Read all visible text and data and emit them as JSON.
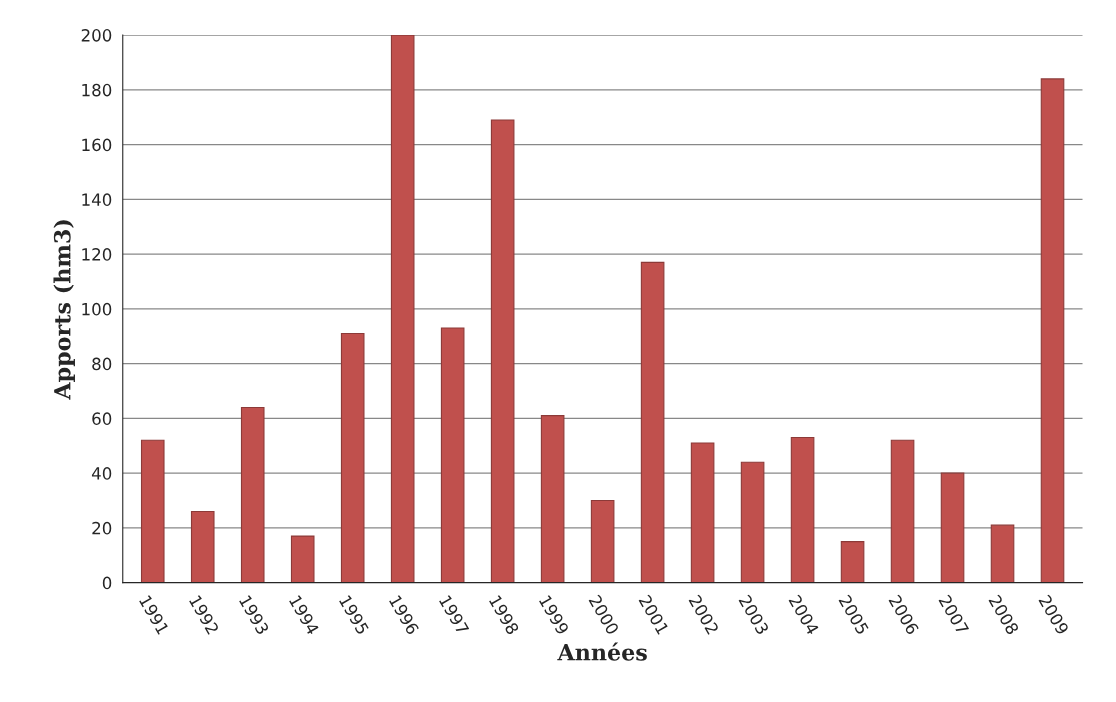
{
  "chart_data": {
    "type": "bar",
    "xlabel": "Années",
    "ylabel": "Apports (hm3)",
    "categories": [
      "1991",
      "1992",
      "1993",
      "1994",
      "1995",
      "1996",
      "1997",
      "1998",
      "1999",
      "2000",
      "2001",
      "2002",
      "2003",
      "2004",
      "2005",
      "2006",
      "2007",
      "2008",
      "2009"
    ],
    "values": [
      52,
      26,
      64,
      17,
      91,
      200,
      93,
      169,
      61,
      30,
      117,
      51,
      44,
      53,
      15,
      52,
      40,
      21,
      184
    ],
    "color": "#c0504d",
    "ylim": [
      0,
      200
    ],
    "yticks": [
      0,
      20,
      40,
      60,
      80,
      100,
      120,
      140,
      160,
      180,
      200
    ],
    "grid": "y",
    "legend": false
  }
}
